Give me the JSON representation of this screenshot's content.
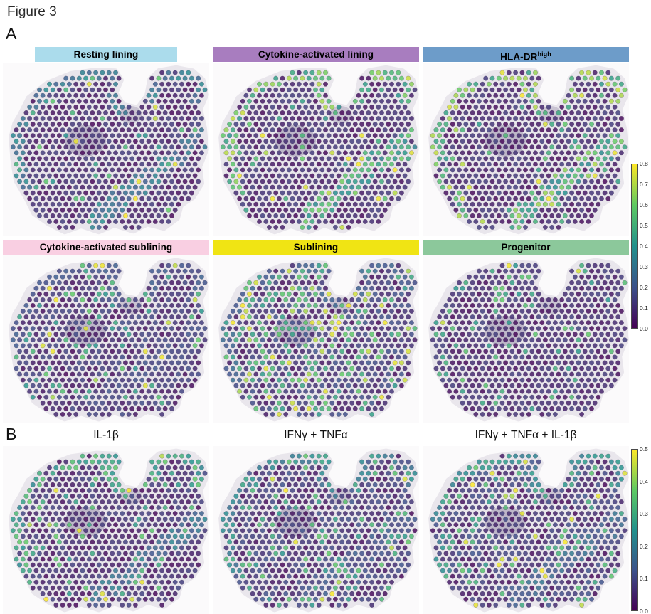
{
  "figure": {
    "title": "Figure 3"
  },
  "panels": {
    "a": {
      "label": "A",
      "row1": [
        {
          "title": "Resting lining",
          "header_color": "#abdcec"
        },
        {
          "title": "Cytokine-activated lining",
          "header_color": "#a87dbf"
        },
        {
          "title": "HLA-DR",
          "title_superscript": "high",
          "header_color": "#6d9cc9"
        }
      ],
      "row2": [
        {
          "title": "Cytokine-activated sublining",
          "header_color": "#f9cfe2"
        },
        {
          "title": "Sublining",
          "header_color": "#f0e414"
        },
        {
          "title": "Progenitor",
          "header_color": "#8cc89b"
        }
      ]
    },
    "b": {
      "label": "B",
      "row3": [
        {
          "title": "IL-1β"
        },
        {
          "title": "IFNγ + TNFα"
        },
        {
          "title": "IFNγ + TNFα + IL-1β"
        }
      ]
    }
  },
  "chart_data": {
    "type": "scatter",
    "variant": "spatial transcriptomics spot maps of one tissue section; hexagonally packed spots colored by score with viridis colormap",
    "colormap": {
      "name": "viridis",
      "stops": [
        "#440154",
        "#3b528b",
        "#21918c",
        "#5ec962",
        "#fde725"
      ]
    },
    "panels": [
      {
        "panel": "A",
        "plots": [
          "Resting lining",
          "Cytokine-activated lining",
          "HLA-DRhigh",
          "Cytokine-activated sublining",
          "Sublining",
          "Progenitor"
        ],
        "colorbar": {
          "min": 0.0,
          "max": 0.8,
          "ticks": [
            "0.8",
            "0.7",
            "0.6",
            "0.5",
            "0.4",
            "0.3",
            "0.2",
            "0.1",
            "0.0"
          ]
        }
      },
      {
        "panel": "B",
        "plots": [
          "IL-1β",
          "IFNγ + TNFα",
          "IFNγ + TNFα + IL-1β"
        ],
        "colorbar": {
          "min": 0.0,
          "max": 0.5,
          "ticks": [
            "0.5",
            "0.4",
            "0.3",
            "0.2",
            "0.1",
            "0.0"
          ]
        }
      }
    ],
    "tissue_outline": [
      [
        0.085,
        0.3
      ],
      [
        0.125,
        0.205
      ],
      [
        0.215,
        0.12
      ],
      [
        0.33,
        0.065
      ],
      [
        0.455,
        0.045
      ],
      [
        0.545,
        0.05
      ],
      [
        0.572,
        0.1
      ],
      [
        0.545,
        0.175
      ],
      [
        0.585,
        0.245
      ],
      [
        0.655,
        0.262
      ],
      [
        0.7,
        0.19
      ],
      [
        0.715,
        0.095
      ],
      [
        0.758,
        0.048
      ],
      [
        0.84,
        0.032
      ],
      [
        0.92,
        0.05
      ],
      [
        0.968,
        0.1
      ],
      [
        0.985,
        0.185
      ],
      [
        0.955,
        0.268
      ],
      [
        0.975,
        0.375
      ],
      [
        0.985,
        0.5
      ],
      [
        0.952,
        0.6
      ],
      [
        0.962,
        0.695
      ],
      [
        0.92,
        0.775
      ],
      [
        0.862,
        0.82
      ],
      [
        0.845,
        0.895
      ],
      [
        0.78,
        0.952
      ],
      [
        0.7,
        0.928
      ],
      [
        0.632,
        0.968
      ],
      [
        0.54,
        0.934
      ],
      [
        0.465,
        0.972
      ],
      [
        0.38,
        0.938
      ],
      [
        0.3,
        0.972
      ],
      [
        0.225,
        0.928
      ],
      [
        0.152,
        0.868
      ],
      [
        0.115,
        0.78
      ],
      [
        0.066,
        0.68
      ],
      [
        0.05,
        0.555
      ],
      [
        0.042,
        0.43
      ],
      [
        0.06,
        0.35
      ]
    ],
    "spot_grid": {
      "arrangement": "hexagonal",
      "approx_spots_per_section": 560
    },
    "spot_patterns": [
      {
        "plot": "Resting lining",
        "seed": 11,
        "base": 0.18,
        "edge": 0.5,
        "band": 0.5,
        "teal": 0.05,
        "yellow": 0.012,
        "left_bias": 1
      },
      {
        "plot": "Cytokine-activated lining",
        "seed": 22,
        "base": 0.18,
        "edge": 0.92,
        "band": 0.8,
        "teal": 0.07,
        "yellow": 0.02,
        "left_bias": 1
      },
      {
        "plot": "HLA-DRhigh",
        "seed": 33,
        "base": 0.18,
        "edge": 0.95,
        "band": 0.85,
        "teal": 0.07,
        "yellow": 0.03,
        "left_bias": 1
      },
      {
        "plot": "Cytokine-activated sublining",
        "seed": 44,
        "base": 0.22,
        "edge": 0.3,
        "band": 0.25,
        "teal": 0.1,
        "yellow": 0.02,
        "left_bias": 1
      },
      {
        "plot": "Sublining",
        "seed": 55,
        "base": 0.25,
        "edge": 0.35,
        "band": 0.15,
        "teal": 0.16,
        "yellow": 0.06,
        "left_bias": 1.8
      },
      {
        "plot": "Progenitor",
        "seed": 66,
        "base": 0.18,
        "edge": 0.18,
        "band": 0.1,
        "teal": 0.07,
        "yellow": 0.006,
        "left_bias": 1
      },
      {
        "plot": "IL-1β",
        "seed": 77,
        "base": 0.2,
        "edge": 0.75,
        "band": 0.45,
        "teal": 0.1,
        "yellow": 0.02,
        "left_bias": 1
      },
      {
        "plot": "IFNγ + TNFα",
        "seed": 88,
        "base": 0.25,
        "edge": 0.55,
        "band": 0.3,
        "teal": 0.13,
        "yellow": 0.015,
        "left_bias": 1
      },
      {
        "plot": "IFNγ + TNFα + IL-1β",
        "seed": 99,
        "base": 0.25,
        "edge": 0.6,
        "band": 0.4,
        "teal": 0.13,
        "yellow": 0.02,
        "left_bias": 1
      }
    ],
    "note": "Per-spot numeric values are not individually legible in the source figure; spot colors are procedurally re-rendered to approximate the depicted spatial expression patterns."
  }
}
